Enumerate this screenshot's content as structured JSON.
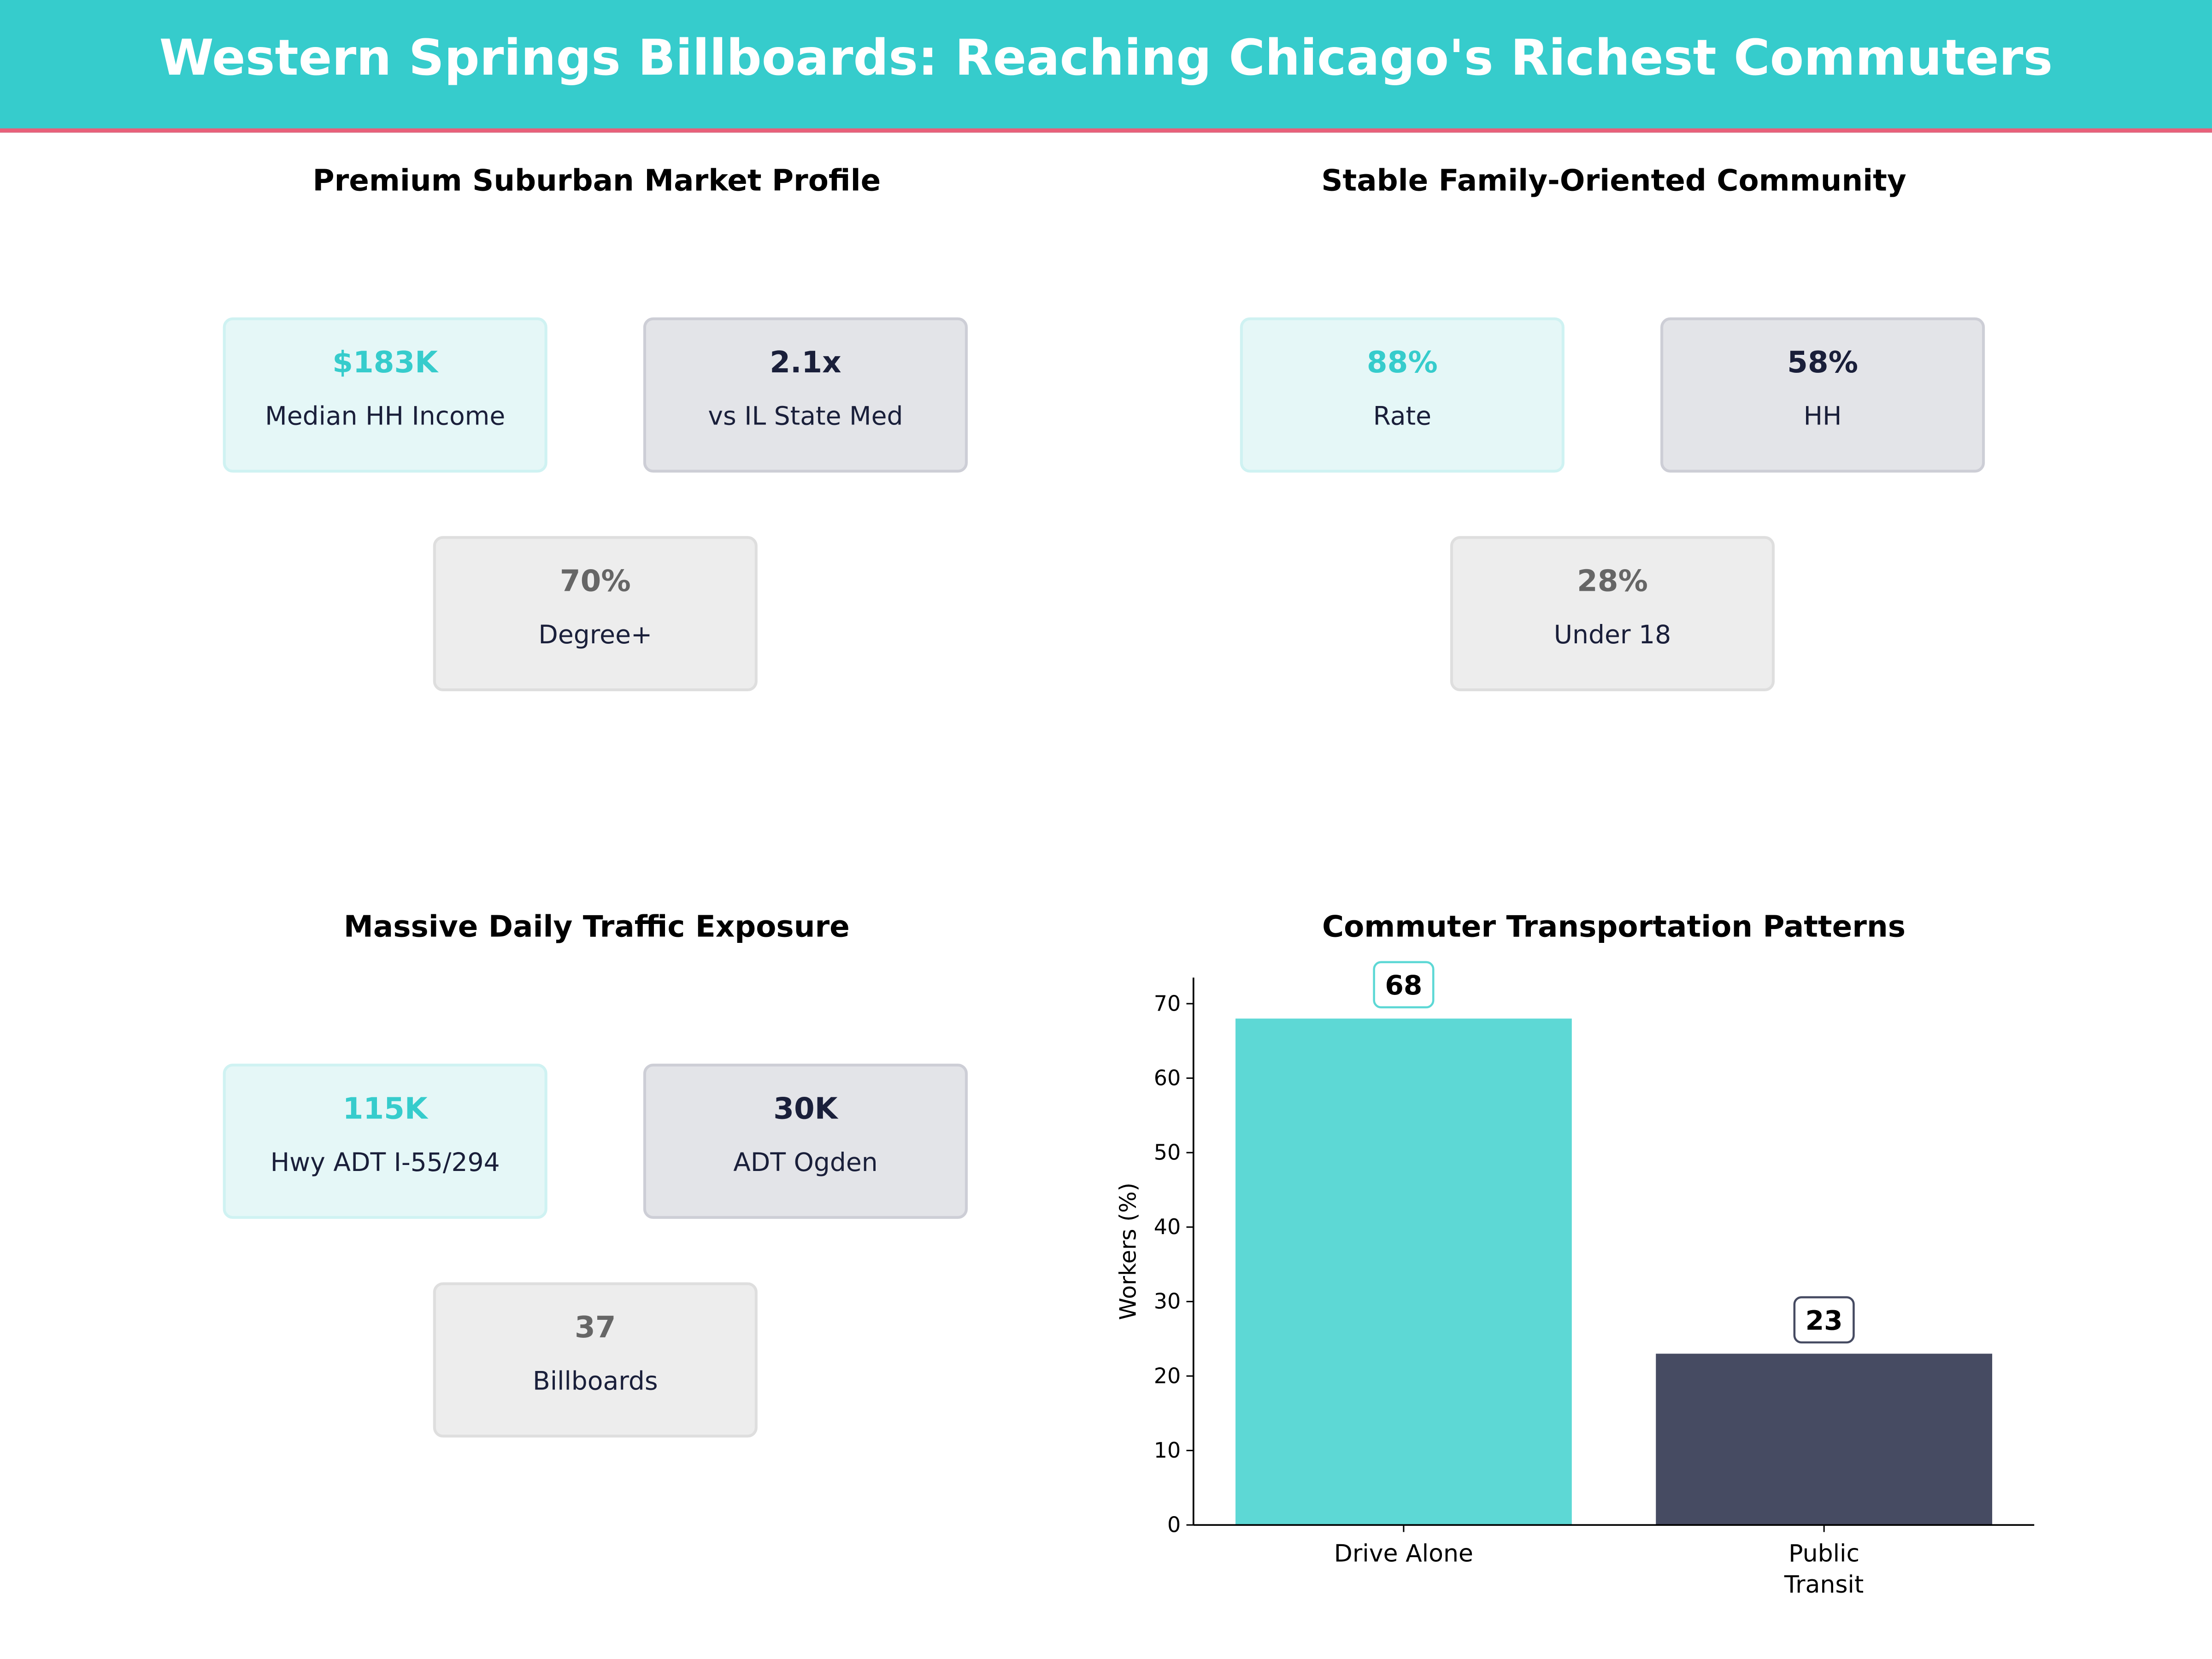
{
  "header": {
    "title": "Western Springs Billboards: Reaching Chicago's Richest Commuters"
  },
  "panels": [
    {
      "title": "Premium Suburban Market Profile",
      "cards": [
        {
          "value": "$183K",
          "label": "Median HH Income"
        },
        {
          "value": "2.1x",
          "label": "vs IL State Med"
        },
        {
          "value": "70%",
          "label": "Degree+"
        }
      ]
    },
    {
      "title": "Stable Family-Oriented Community",
      "cards": [
        {
          "value": "88%",
          "label": "Rate"
        },
        {
          "value": "58%",
          "label": "HH"
        },
        {
          "value": "28%",
          "label": "Under 18"
        }
      ]
    },
    {
      "title": "Massive Daily Traffic Exposure",
      "cards": [
        {
          "value": "115K",
          "label": "Hwy ADT I-55/294"
        },
        {
          "value": "30K",
          "label": "ADT Ogden"
        },
        {
          "value": "37",
          "label": "Billboards"
        }
      ]
    }
  ],
  "colors": {
    "accent": "#36CCCC",
    "dark": "#464B62",
    "highlight_line": "#E8607A"
  },
  "chart_data": {
    "type": "bar",
    "title": "Commuter Transportation Patterns",
    "categories": [
      "Drive Alone",
      "Public\nTransit"
    ],
    "values": [
      68,
      23
    ],
    "data_labels": [
      "68",
      "23"
    ],
    "colors": [
      "#5DD8D5",
      "#464B62"
    ],
    "xlabel": "",
    "ylabel": "Workers (%)",
    "ylim": [
      0,
      73.5
    ],
    "yticks": [
      0,
      10,
      20,
      30,
      40,
      50,
      60,
      70
    ],
    "grid": false
  }
}
